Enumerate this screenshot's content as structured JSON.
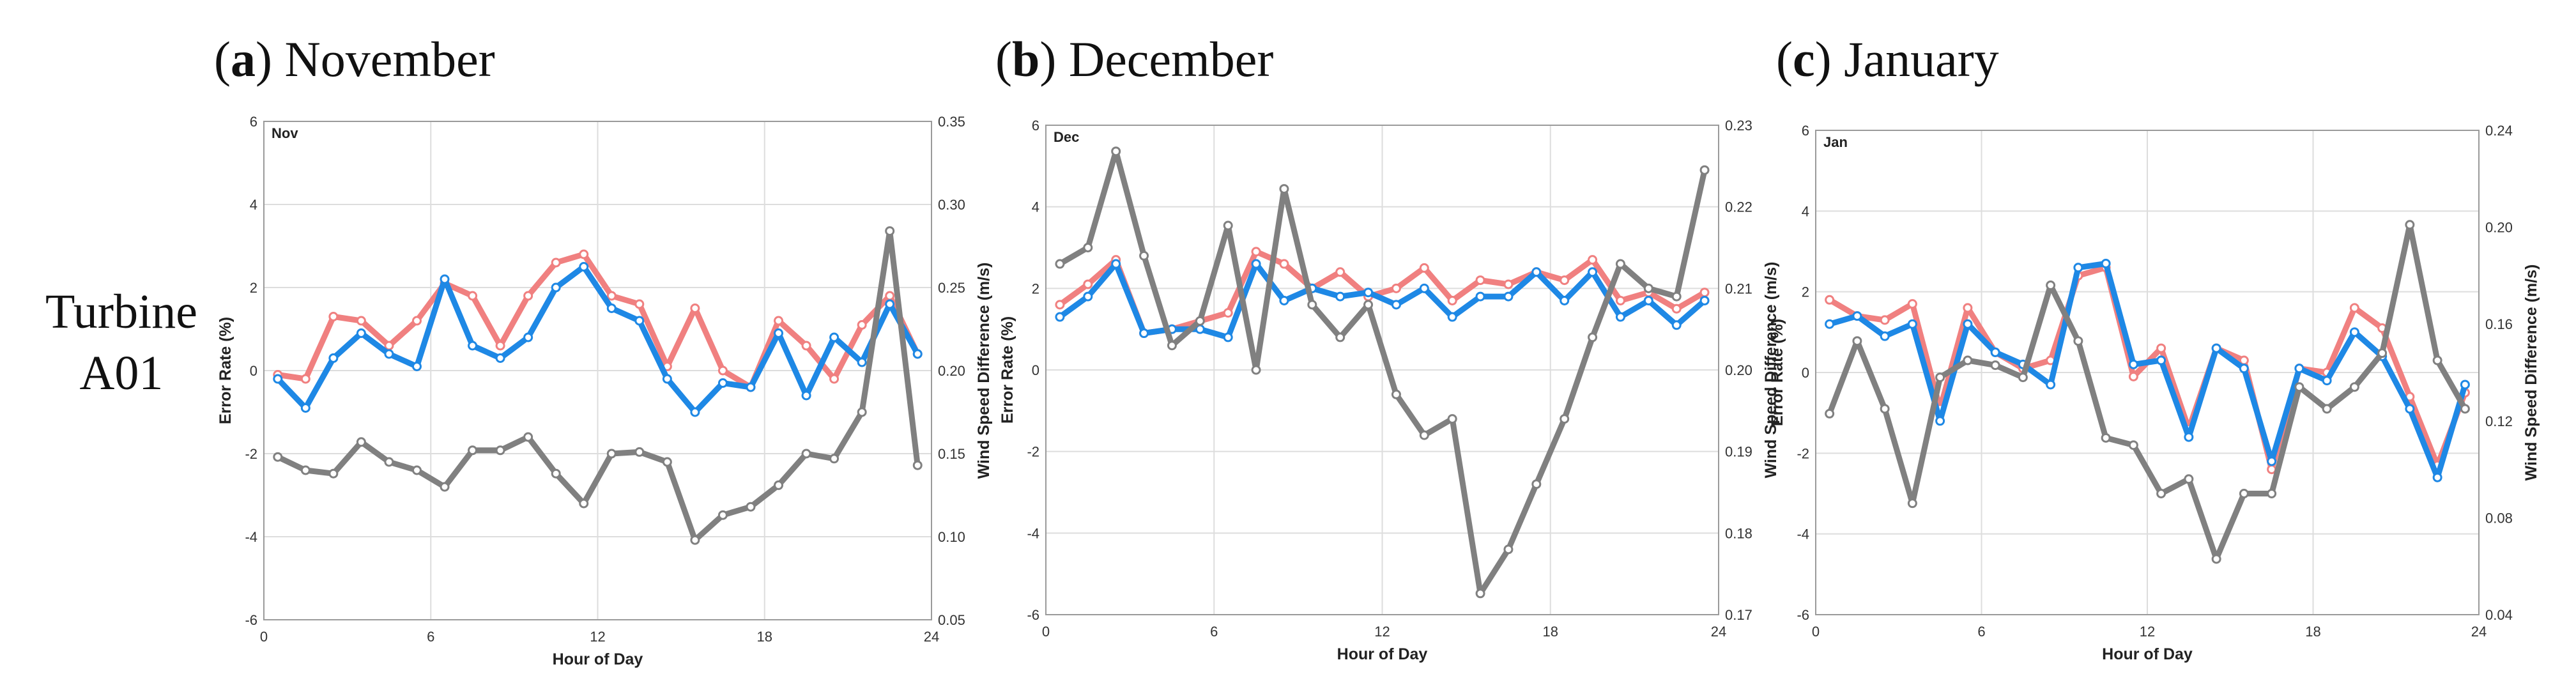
{
  "row_label": {
    "line1": "Turbine",
    "line2": "A01"
  },
  "chart_data": [
    {
      "type": "line",
      "panel_letter": "a",
      "panel_title": "November",
      "tag": "Nov",
      "x": [
        0.5,
        1.5,
        2.5,
        3.5,
        4.5,
        5.5,
        6.5,
        7.5,
        8.5,
        9.5,
        10.5,
        11.5,
        12.5,
        13.5,
        14.5,
        15.5,
        16.5,
        17.5,
        18.5,
        19.5,
        20.5,
        21.5,
        22.5,
        23.5
      ],
      "xlim": [
        0,
        24
      ],
      "xticks": [
        "0",
        "6",
        "12",
        "18",
        "24"
      ],
      "xlabel": "Hour of Day",
      "ylabel": "Error Rate (%)",
      "ylim": [
        -6,
        6
      ],
      "yticks": [
        "-6",
        "-4",
        "-2",
        "0",
        "2",
        "4",
        "6"
      ],
      "y2label": "Wind Speed Difference (m/s)",
      "y2lim": [
        0.05,
        0.35
      ],
      "y2ticks": [
        "0.05",
        "0.10",
        "0.15",
        "0.20",
        "0.25",
        "0.30",
        "0.35"
      ],
      "series": [
        {
          "name": "error_rate_red",
          "axis": "left",
          "color": "#f08080",
          "values": [
            -0.1,
            -0.2,
            1.3,
            1.2,
            0.6,
            1.2,
            2.1,
            1.8,
            0.6,
            1.8,
            2.6,
            2.8,
            1.8,
            1.6,
            0.1,
            1.5,
            0.0,
            -0.4,
            1.2,
            0.6,
            -0.2,
            1.1,
            1.8,
            0.4
          ]
        },
        {
          "name": "error_rate_blue",
          "axis": "left",
          "color": "#1e88e5",
          "values": [
            -0.2,
            -0.9,
            0.3,
            0.9,
            0.4,
            0.1,
            2.2,
            0.6,
            0.3,
            0.8,
            2.0,
            2.5,
            1.5,
            1.2,
            -0.2,
            -1.0,
            -0.3,
            -0.4,
            0.9,
            -0.6,
            0.8,
            0.2,
            1.6,
            0.4
          ]
        },
        {
          "name": "wind_speed_difference",
          "axis": "right",
          "color": "#808080",
          "values": [
            0.148,
            0.14,
            0.138,
            0.157,
            0.145,
            0.14,
            0.13,
            0.152,
            0.152,
            0.16,
            0.138,
            0.12,
            0.15,
            0.151,
            0.145,
            0.098,
            0.113,
            0.118,
            0.131,
            0.15,
            0.147,
            0.175,
            0.284,
            0.143
          ]
        }
      ]
    },
    {
      "type": "line",
      "panel_letter": "b",
      "panel_title": "December",
      "tag": "Dec",
      "x": [
        0.5,
        1.5,
        2.5,
        3.5,
        4.5,
        5.5,
        6.5,
        7.5,
        8.5,
        9.5,
        10.5,
        11.5,
        12.5,
        13.5,
        14.5,
        15.5,
        16.5,
        17.5,
        18.5,
        19.5,
        20.5,
        21.5,
        22.5,
        23.5
      ],
      "xlim": [
        0,
        24
      ],
      "xticks": [
        "0",
        "6",
        "12",
        "18",
        "24"
      ],
      "xlabel": "Hour of Day",
      "ylabel": "Error Rate (%)",
      "ylim": [
        -6,
        6
      ],
      "yticks": [
        "-6",
        "-4",
        "-2",
        "0",
        "2",
        "4",
        "6"
      ],
      "y2label": "Wind Speed Difference (m/s)",
      "y2lim": [
        0.17,
        0.23
      ],
      "y2ticks": [
        "0.17",
        "0.18",
        "0.19",
        "0.20",
        "0.21",
        "0.22",
        "0.23"
      ],
      "series": [
        {
          "name": "error_rate_red",
          "axis": "left",
          "color": "#f08080",
          "values": [
            1.6,
            2.1,
            2.7,
            0.9,
            1.0,
            1.2,
            1.4,
            2.9,
            2.6,
            2.0,
            2.4,
            1.8,
            2.0,
            2.5,
            1.7,
            2.2,
            2.1,
            2.4,
            2.2,
            2.7,
            1.7,
            1.9,
            1.5,
            1.9
          ]
        },
        {
          "name": "error_rate_blue",
          "axis": "left",
          "color": "#1e88e5",
          "values": [
            1.3,
            1.8,
            2.6,
            0.9,
            1.0,
            1.0,
            0.8,
            2.6,
            1.7,
            2.0,
            1.8,
            1.9,
            1.6,
            2.0,
            1.3,
            1.8,
            1.8,
            2.4,
            1.7,
            2.4,
            1.3,
            1.7,
            1.1,
            1.7
          ]
        },
        {
          "name": "wind_speed_difference",
          "axis": "right",
          "color": "#808080",
          "values": [
            0.213,
            0.215,
            0.2268,
            0.214,
            0.203,
            0.206,
            0.2177,
            0.2,
            0.2222,
            0.208,
            0.204,
            0.208,
            0.197,
            0.192,
            0.194,
            0.1726,
            0.178,
            0.186,
            0.194,
            0.204,
            0.213,
            0.21,
            0.209,
            0.2245
          ]
        }
      ]
    },
    {
      "type": "line",
      "panel_letter": "c",
      "panel_title": "January",
      "tag": "Jan",
      "x": [
        0.5,
        1.5,
        2.5,
        3.5,
        4.5,
        5.5,
        6.5,
        7.5,
        8.5,
        9.5,
        10.5,
        11.5,
        12.5,
        13.5,
        14.5,
        15.5,
        16.5,
        17.5,
        18.5,
        19.5,
        20.5,
        21.5,
        22.5,
        23.5
      ],
      "xlim": [
        0,
        24
      ],
      "xticks": [
        "0",
        "6",
        "12",
        "18",
        "24"
      ],
      "xlabel": "Hour of Day",
      "ylabel": "Error Rate (%)",
      "ylim": [
        -6,
        6
      ],
      "yticks": [
        "-6",
        "-4",
        "-2",
        "0",
        "2",
        "4",
        "6"
      ],
      "y2label": "Wind Speed Difference (m/s)",
      "y2lim": [
        0.04,
        0.24
      ],
      "y2ticks": [
        "0.04",
        "0.08",
        "0.12",
        "0.16",
        "0.20",
        "0.24"
      ],
      "series": [
        {
          "name": "error_rate_red",
          "axis": "left",
          "color": "#f08080",
          "values": [
            1.8,
            1.4,
            1.3,
            1.7,
            -0.9,
            1.6,
            0.5,
            0.1,
            0.3,
            2.4,
            2.6,
            -0.1,
            0.6,
            -1.4,
            0.6,
            0.3,
            -2.4,
            0.1,
            0.0,
            1.6,
            1.1,
            -0.6,
            -2.3,
            -0.5
          ]
        },
        {
          "name": "error_rate_blue",
          "axis": "left",
          "color": "#1e88e5",
          "values": [
            1.2,
            1.4,
            0.9,
            1.2,
            -1.2,
            1.2,
            0.5,
            0.2,
            -0.3,
            2.6,
            2.7,
            0.2,
            0.3,
            -1.6,
            0.6,
            0.1,
            -2.2,
            0.1,
            -0.2,
            1.0,
            0.4,
            -0.9,
            -2.6,
            -0.3
          ]
        },
        {
          "name": "wind_speed_difference",
          "axis": "right",
          "color": "#808080",
          "values": [
            0.123,
            0.153,
            0.125,
            0.086,
            0.138,
            0.145,
            0.143,
            0.138,
            0.176,
            0.153,
            0.113,
            0.11,
            0.09,
            0.096,
            0.063,
            0.09,
            0.09,
            0.134,
            0.125,
            0.134,
            0.148,
            0.201,
            0.145,
            0.125
          ]
        }
      ]
    }
  ]
}
